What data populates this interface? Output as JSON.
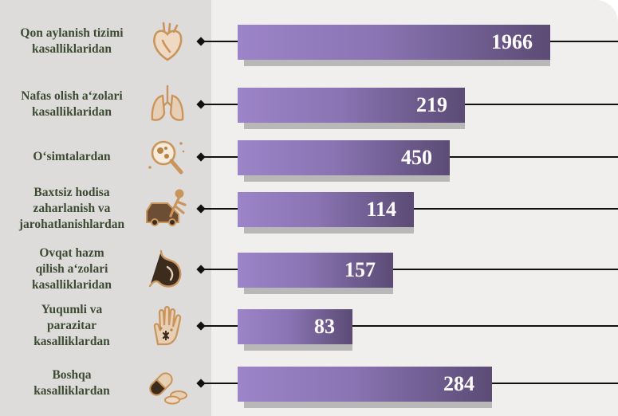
{
  "chart_data": {
    "type": "bar",
    "orientation": "horizontal",
    "categories": [
      "Qon aylanish tizimi kasalliklaridan",
      "Nafas olish a‘zolari kasalliklaridan",
      "O‘simtalardan",
      "Baxtsiz hodisa zaharlanish va jarohatlanishlardan",
      "Ovqat hazm qilish a‘zolari kasalliklaridan",
      "Yuqumli va parazitar kasalliklardan",
      "Boshqa kasalliklardan"
    ],
    "label_lines": [
      [
        "Qon aylanish tizimi",
        "kasalliklaridan"
      ],
      [
        "Nafas olish a‘zolari",
        "kasalliklaridan"
      ],
      [
        "O‘simtalardan"
      ],
      [
        "Baxtsiz hodisa",
        "zaharlanish va",
        "jarohatlanishlardan"
      ],
      [
        "Ovqat hazm",
        "qilish a‘zolari",
        "kasalliklaridan"
      ],
      [
        "Yuqumli va",
        "parazitar",
        "kasalliklardan"
      ],
      [
        "Boshqa",
        "kasalliklardan"
      ]
    ],
    "values": [
      1966,
      219,
      450,
      114,
      157,
      83,
      284
    ],
    "value_labels": [
      "1966",
      "219",
      "450",
      "114",
      "157",
      "83",
      "284"
    ],
    "icons": [
      "heart-icon",
      "lungs-icon",
      "tumor-cell-magnifier-icon",
      "car-accident-icon",
      "stomach-icon",
      "infected-hand-icon",
      "pills-icon"
    ],
    "xlabel": "",
    "ylabel": "",
    "grid": false,
    "legend": "none",
    "colors": {
      "bar_start": "#9c84c8",
      "bar_end": "#5b4b75",
      "bar_shadow": "#b9b8b8",
      "label_text": "#3c4a32",
      "icon": "#c9955c",
      "left_panel": "#dedcdb",
      "right_panel": "#f0efee"
    }
  }
}
